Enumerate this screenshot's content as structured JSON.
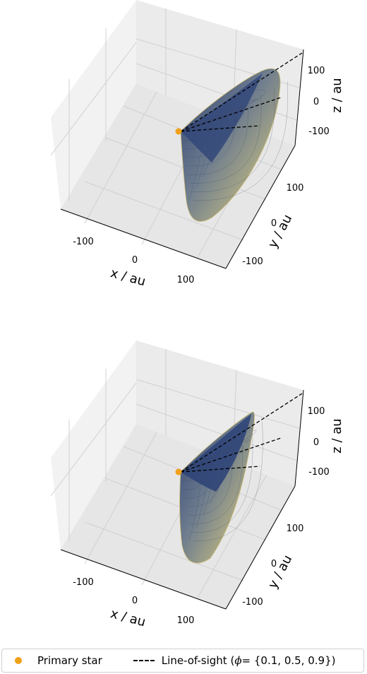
{
  "chart_data": [
    {
      "type": "surface3d",
      "xlabel": "x / au",
      "ylabel": "y / au",
      "zlabel": "z / au",
      "xticks": [
        -100,
        0,
        100
      ],
      "yticks": [
        -100,
        0,
        100
      ],
      "zticks": [
        -100,
        0,
        100
      ],
      "xlim": [
        -150,
        150
      ],
      "ylim": [
        -150,
        150
      ],
      "zlim": [
        -150,
        150
      ],
      "grid": true,
      "primary_star": {
        "x": 0,
        "y": 0,
        "z": 0,
        "color": "#f0a11c"
      },
      "sight_lines": [
        {
          "phi": 0.1
        },
        {
          "phi": 0.5
        },
        {
          "phi": 0.9
        }
      ],
      "surface_colors": {
        "dark": "#2b3f72",
        "light": "#e8d77c"
      },
      "cone_shape": "open"
    },
    {
      "type": "surface3d",
      "xlabel": "x / au",
      "ylabel": "y / au",
      "zlabel": "z / au",
      "xticks": [
        -100,
        0,
        100
      ],
      "yticks": [
        -100,
        0,
        100
      ],
      "zticks": [
        -100,
        0,
        100
      ],
      "xlim": [
        -150,
        150
      ],
      "ylim": [
        -150,
        150
      ],
      "zlim": [
        -150,
        150
      ],
      "grid": true,
      "primary_star": {
        "x": 0,
        "y": 0,
        "z": 0,
        "color": "#f0a11c"
      },
      "sight_lines": [
        {
          "phi": 0.1
        },
        {
          "phi": 0.5
        },
        {
          "phi": 0.9
        }
      ],
      "surface_colors": {
        "dark": "#2b3f72",
        "light": "#e8d77c"
      },
      "cone_shape": "closed"
    }
  ],
  "legend": {
    "primary_star": "Primary star",
    "sight_line_prefix": "Line-of-sight (",
    "sight_line_symbol": "ϕ",
    "sight_line_suffix": " = {0.1, 0.5, 0.9})"
  }
}
